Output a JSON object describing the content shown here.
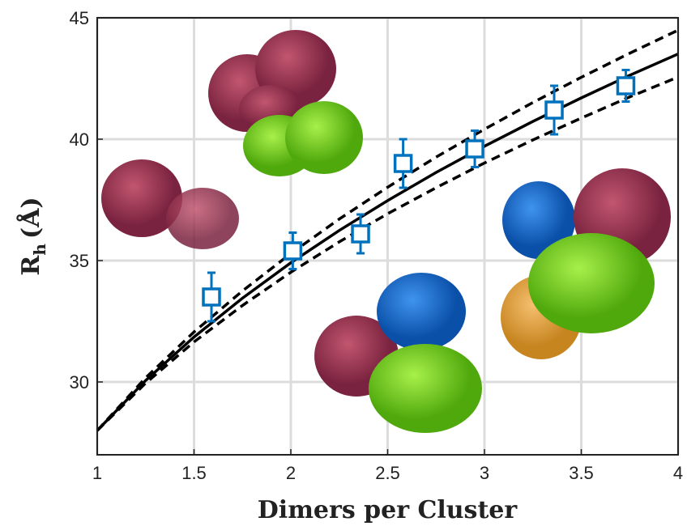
{
  "chart_data": {
    "type": "scatter",
    "xlabel": "Dimers per Cluster",
    "ylabel": [
      "R",
      "h",
      "(Å)"
    ],
    "xlim": [
      1,
      4
    ],
    "ylim": [
      27,
      45
    ],
    "xticks": [
      1,
      1.5,
      2,
      2.5,
      3,
      3.5,
      4
    ],
    "yticks": [
      30,
      35,
      40,
      45
    ],
    "grid": true,
    "points": {
      "color": "#0072bd",
      "x": [
        1.59,
        2.01,
        2.36,
        2.58,
        2.95,
        3.36,
        3.73
      ],
      "y": [
        33.5,
        35.4,
        36.1,
        39.0,
        39.6,
        41.2,
        42.2
      ],
      "yerr": [
        1.0,
        0.75,
        0.8,
        1.0,
        0.75,
        1.0,
        0.65
      ]
    },
    "lines": [
      {
        "style": "solid",
        "color": "#000000",
        "x": [
          1,
          1.25,
          1.5,
          1.75,
          2,
          2.25,
          2.5,
          2.75,
          3,
          3.25,
          3.5,
          3.75,
          4
        ],
        "values": [
          28,
          30.06,
          31.85,
          33.45,
          34.91,
          36.24,
          37.47,
          38.63,
          39.71,
          40.73,
          41.7,
          42.63,
          43.51
        ]
      },
      {
        "style": "dashed",
        "color": "#000000",
        "x": [
          1,
          1.25,
          1.5,
          1.75,
          2,
          2.25,
          2.5,
          2.75,
          3,
          3.25,
          3.5,
          3.75,
          4
        ],
        "values": [
          28,
          30.17,
          32.06,
          33.75,
          35.29,
          36.71,
          38.02,
          39.26,
          40.41,
          41.51,
          42.55,
          43.54,
          44.49
        ]
      },
      {
        "style": "dashed",
        "color": "#000000",
        "x": [
          1,
          1.25,
          1.5,
          1.75,
          2,
          2.25,
          2.5,
          2.75,
          3,
          3.25,
          3.5,
          3.75,
          4
        ],
        "values": [
          28,
          29.95,
          31.65,
          33.15,
          34.52,
          35.77,
          36.93,
          38.0,
          39.02,
          39.97,
          40.87,
          41.74,
          42.56
        ]
      }
    ]
  }
}
